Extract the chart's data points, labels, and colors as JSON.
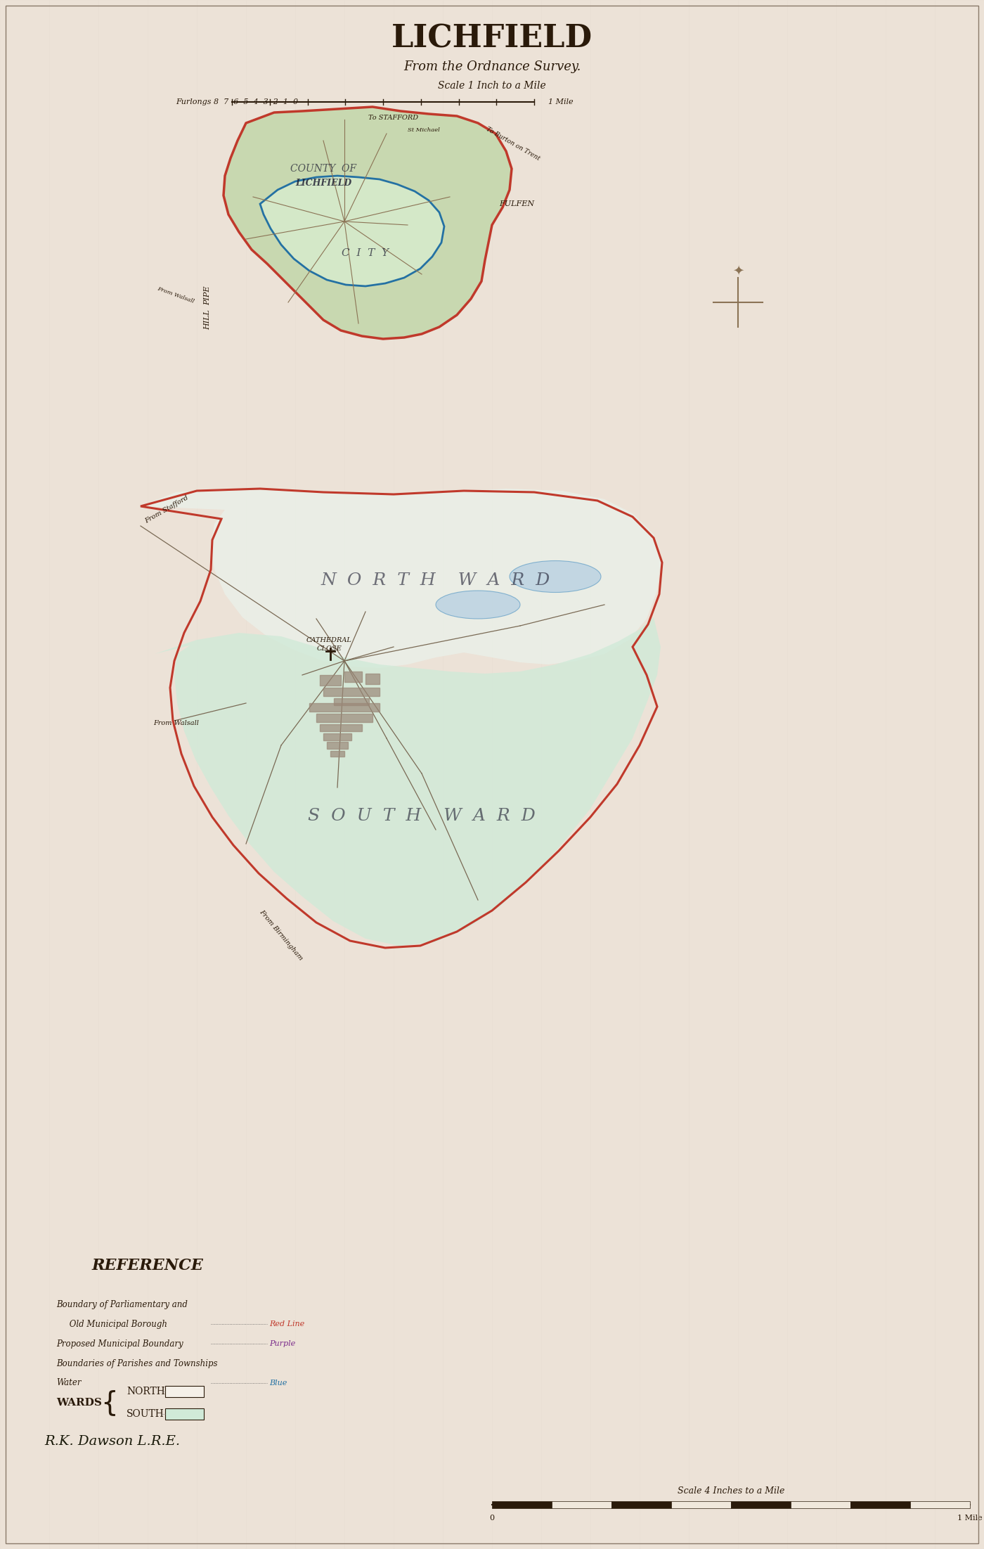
{
  "title": "LICHFIELD",
  "subtitle": "From the Ordnance Survey.",
  "scale_top_label": "Scale 1 Inch to a Mile",
  "scale_top_furlongs": "Furlongs 8  7  6  5  4  3  2  1  0",
  "scale_top_mile": "1 Mile",
  "scale_bottom_label": "Scale 4 Inches to a Mile",
  "scale_bottom_mile": "1 Mile",
  "reference_title": "REFERENCE",
  "ref_lines": [
    "Boundary of Parliamentary and",
    "     Old Municipal Borough",
    "Proposed Municipal Boundary",
    "Boundaries of Parishes and Townships",
    "Water"
  ],
  "ref_values": [
    "Red Line",
    "",
    "Purple",
    "",
    "Blue"
  ],
  "wards_label": "WARDS",
  "north_label": "NORTH",
  "south_label": "SOUTH",
  "signature": "R.K. Dawson L.R.E.",
  "bg_color": "#e8ddd0",
  "paper_color": "#ede3d8",
  "map_bg_top": "#d4c9b8",
  "north_ward_color": "#e8f0e8",
  "south_ward_color": "#d0ead8",
  "red_line_color": "#c0392b",
  "blue_line_color": "#2471a3",
  "county_fill": "#c8d8b0",
  "city_fill": "#d4e8c8",
  "north_text_color": "#2c3e50",
  "ward_text_color": "#1a1a2e",
  "label_color": "#2c2c2c",
  "cross_color": "#8b7355"
}
